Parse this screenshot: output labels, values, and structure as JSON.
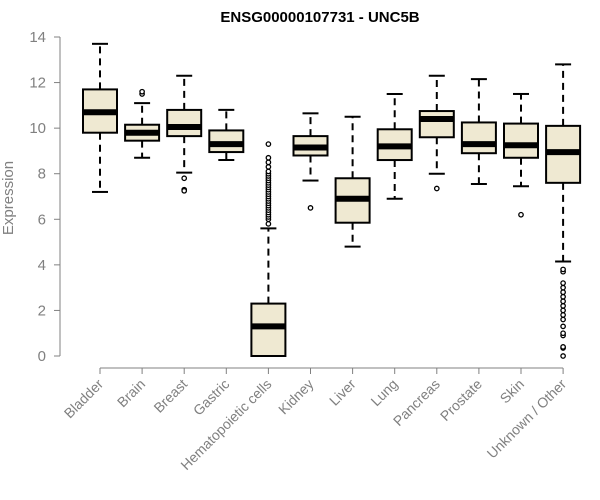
{
  "chart_data": {
    "type": "box",
    "title": "ENSG00000107731 - UNC5B",
    "ylabel": "Expression",
    "xlabel": "",
    "ylim": [
      0,
      14
    ],
    "yticks": [
      0,
      2,
      4,
      6,
      8,
      10,
      12,
      14
    ],
    "grid": false,
    "colors": {
      "box_fill": "#efe9d2",
      "box_stroke": "#000000",
      "axis": "#808080"
    },
    "categories": [
      "Bladder",
      "Brain",
      "Breast",
      "Gastric",
      "Hematopoietic cells",
      "Kidney",
      "Liver",
      "Lung",
      "Pancreas",
      "Prostate",
      "Skin",
      "Unknown / Other"
    ],
    "boxes": [
      {
        "min": 7.2,
        "q1": 9.8,
        "median": 10.7,
        "q3": 11.7,
        "max": 13.7,
        "outliers": []
      },
      {
        "min": 8.7,
        "q1": 9.45,
        "median": 9.8,
        "q3": 10.15,
        "max": 11.1,
        "outliers": [
          11.5,
          11.6
        ]
      },
      {
        "min": 8.05,
        "q1": 9.65,
        "median": 10.05,
        "q3": 10.8,
        "max": 12.3,
        "outliers": [
          7.8,
          7.3,
          7.25
        ]
      },
      {
        "min": 8.6,
        "q1": 8.95,
        "median": 9.3,
        "q3": 9.9,
        "max": 10.8,
        "outliers": []
      },
      {
        "min": 0.0,
        "q1": 0.0,
        "median": 1.3,
        "q3": 2.3,
        "max": 5.6,
        "outliers": [
          5.8,
          6.0,
          6.1,
          6.2,
          6.3,
          6.4,
          6.5,
          6.6,
          6.7,
          6.8,
          6.9,
          7.0,
          7.1,
          7.2,
          7.3,
          7.4,
          7.5,
          7.6,
          7.7,
          7.8,
          7.9,
          8.0,
          8.1,
          8.3,
          8.5,
          8.7,
          9.3
        ]
      },
      {
        "min": 7.7,
        "q1": 8.8,
        "median": 9.15,
        "q3": 9.65,
        "max": 10.65,
        "outliers": [
          6.5
        ]
      },
      {
        "min": 4.8,
        "q1": 5.85,
        "median": 6.9,
        "q3": 7.8,
        "max": 10.5,
        "outliers": []
      },
      {
        "min": 6.9,
        "q1": 8.6,
        "median": 9.2,
        "q3": 9.95,
        "max": 11.5,
        "outliers": []
      },
      {
        "min": 8.0,
        "q1": 9.6,
        "median": 10.4,
        "q3": 10.75,
        "max": 12.3,
        "outliers": [
          7.35
        ]
      },
      {
        "min": 7.55,
        "q1": 8.9,
        "median": 9.3,
        "q3": 10.25,
        "max": 12.15,
        "outliers": []
      },
      {
        "min": 7.45,
        "q1": 8.7,
        "median": 9.25,
        "q3": 10.2,
        "max": 11.5,
        "outliers": [
          6.2
        ]
      },
      {
        "min": 4.15,
        "q1": 7.6,
        "median": 8.95,
        "q3": 10.1,
        "max": 12.8,
        "outliers": [
          0.0,
          0.35,
          0.4,
          0.9,
          1.0,
          1.3,
          1.6,
          1.8,
          2.0,
          2.2,
          2.4,
          2.6,
          2.8,
          3.0,
          3.2,
          3.7,
          3.8
        ]
      }
    ]
  }
}
